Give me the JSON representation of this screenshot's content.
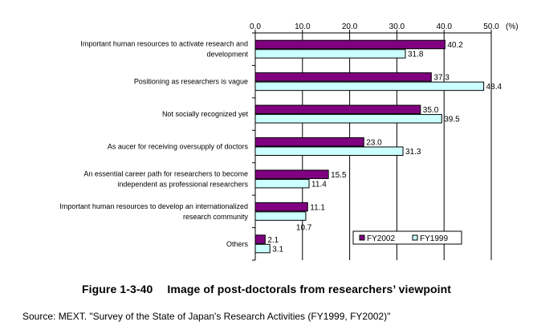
{
  "chart_data": {
    "type": "bar",
    "orientation": "horizontal",
    "categories": [
      [
        "Important human resources to activate research and",
        "development"
      ],
      [
        "Positioning as researchers is vague"
      ],
      [
        "Not socially recognized yet"
      ],
      [
        "As aucer for receiving oversupply of doctors"
      ],
      [
        "An essential career path for researchers to become",
        "independent as professional researchers"
      ],
      [
        "Important human resources to develop an internationalized",
        "research community"
      ],
      [
        "Others"
      ]
    ],
    "series": [
      {
        "name": "FY2002",
        "color": "#800080",
        "values": [
          40.2,
          37.3,
          35.0,
          23.0,
          15.5,
          11.1,
          2.1
        ],
        "labels": [
          "40.2",
          "37.3",
          "35.0",
          "23.0",
          "15.5",
          "11.1",
          "2.1"
        ]
      },
      {
        "name": "FY1999",
        "color": "#ccffff",
        "values": [
          31.8,
          48.4,
          39.5,
          31.3,
          11.4,
          10.7,
          3.1
        ],
        "labels": [
          "31.8",
          "48.4",
          "39.5",
          "31.3",
          "11.4",
          "10.7",
          "3.1"
        ]
      }
    ],
    "x_ticks": [
      "0.0",
      "10.0",
      "20.0",
      "30.0",
      "40.0",
      "50.0"
    ],
    "x_unit": "(%)",
    "xlim": [
      0,
      50
    ],
    "grid": true,
    "legend_position": "bottom-right"
  },
  "caption": {
    "number": "Figure 1-3-40",
    "title": "Image of post-doctorals from researchers’ viewpoint"
  },
  "source": "Source: MEXT. \"Survey of the State of Japan's Research Activities (FY1999, FY2002)\""
}
